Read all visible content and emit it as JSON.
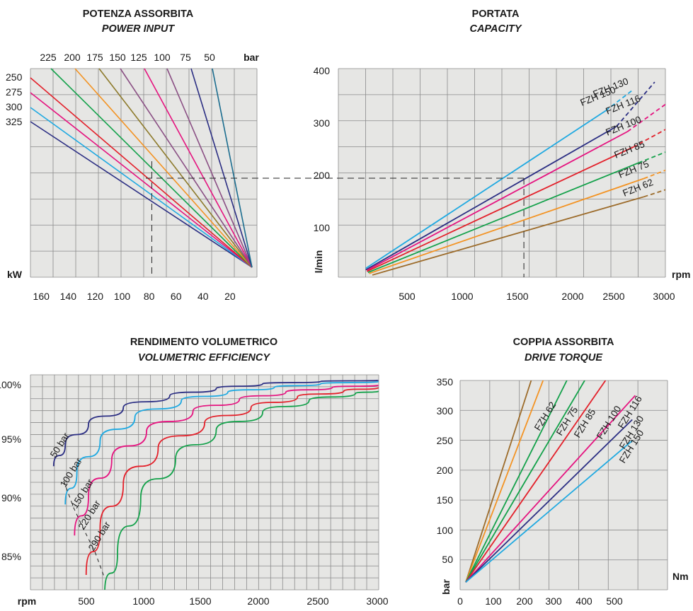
{
  "colors": {
    "panel": "#e6e6e4",
    "grid": "#8a8a8a",
    "navy": "#2b2e83",
    "cyan": "#1fa9e1",
    "magenta": "#e5137f",
    "red": "#e3202a",
    "green": "#13a14a",
    "orange": "#f39323",
    "brown": "#9c6b2a",
    "olive": "#8d7a2b",
    "purple": "#8a4f84",
    "teal": "#1b6d8f"
  },
  "chart_data": [
    {
      "type": "line",
      "title": "POTENZA ASSORBITA",
      "subtitle": "POWER INPUT",
      "xlabel": "kW",
      "x_ticks": [
        "160",
        "140",
        "120",
        "100",
        "80",
        "60",
        "40",
        "20"
      ],
      "top_ticks": [
        "225",
        "200",
        "175",
        "150",
        "125",
        "100",
        "75",
        "50"
      ],
      "top_unit": "bar",
      "left_ticks": [
        "250",
        "275",
        "300",
        "325"
      ],
      "xlim": [
        168,
        0
      ],
      "reference_kw": 78,
      "series_bar": [
        {
          "bar": "325",
          "color": "navy"
        },
        {
          "bar": "300",
          "color": "cyan"
        },
        {
          "bar": "275",
          "color": "magenta"
        },
        {
          "bar": "250",
          "color": "red"
        },
        {
          "bar": "225",
          "color": "green"
        },
        {
          "bar": "200",
          "color": "orange"
        },
        {
          "bar": "175",
          "color": "olive"
        },
        {
          "bar": "150",
          "color": "purple"
        },
        {
          "bar": "125",
          "color": "magenta"
        },
        {
          "bar": "100",
          "color": "purple"
        },
        {
          "bar": "75",
          "color": "navy"
        },
        {
          "bar": "50",
          "color": "teal"
        }
      ]
    },
    {
      "type": "line",
      "title": "PORTATA",
      "subtitle": "CAPACITY",
      "xlabel": "rpm",
      "ylabel": "l/min",
      "x_ticks": [
        "500",
        "1000",
        "1500",
        "2000",
        "2500",
        "3000"
      ],
      "y_ticks": [
        "100",
        "200",
        "300",
        "400"
      ],
      "xlim": [
        0,
        3000
      ],
      "ylim": [
        0,
        400
      ],
      "reference_rpm": 1650,
      "reference_flow": 195,
      "series": [
        {
          "name": "FZH 150",
          "color": "cyan",
          "x": [
            200,
            2400,
            2650
          ],
          "y": [
            28,
            330,
            370
          ]
        },
        {
          "name": "FZH 130",
          "color": "navy",
          "x": [
            200,
            2500,
            2850
          ],
          "y": [
            25,
            300,
            385
          ]
        },
        {
          "name": "FZH 116",
          "color": "magenta",
          "x": [
            210,
            2600,
            3000
          ],
          "y": [
            24,
            290,
            350
          ]
        },
        {
          "name": "FZH 100",
          "color": "red",
          "x": [
            210,
            2650,
            3000
          ],
          "y": [
            22,
            260,
            300
          ]
        },
        {
          "name": "FZH 85",
          "color": "green",
          "x": [
            220,
            2700,
            3000
          ],
          "y": [
            20,
            230,
            255
          ]
        },
        {
          "name": "FZH 75",
          "color": "orange",
          "x": [
            230,
            2750,
            3000
          ],
          "y": [
            18,
            200,
            220
          ]
        },
        {
          "name": "FZH 62",
          "color": "brown",
          "x": [
            260,
            2750,
            3000
          ],
          "y": [
            15,
            165,
            182
          ]
        }
      ]
    },
    {
      "type": "line",
      "title": "RENDIMENTO VOLUMETRICO",
      "subtitle": "VOLUMETRIC EFFICIENCY",
      "xlabel": "rpm",
      "x_ticks": [
        "500",
        "1000",
        "1500",
        "2000",
        "2500",
        "3000"
      ],
      "y_ticks": [
        "85%",
        "90%",
        "95%",
        "100%"
      ],
      "y_tick_values": [
        85,
        90,
        95,
        100
      ],
      "xlim": [
        0,
        3000
      ],
      "ylim": [
        82,
        100
      ],
      "series": [
        {
          "name": "50 bar",
          "color": "navy",
          "x": [
            200,
            300,
            500,
            800,
            1200,
            1600,
            2000,
            2500,
            3000
          ],
          "y": [
            92.7,
            94.5,
            96.2,
            97.6,
            98.6,
            99.2,
            99.6,
            99.8,
            99.9
          ]
        },
        {
          "name": "100 bar",
          "color": "cyan",
          "x": [
            300,
            400,
            600,
            900,
            1300,
            1700,
            2100,
            2500,
            3000
          ],
          "y": [
            89.5,
            92.2,
            94.8,
            96.8,
            98.2,
            98.9,
            99.3,
            99.6,
            99.8
          ]
        },
        {
          "name": "150 bar",
          "color": "magenta",
          "x": [
            380,
            500,
            700,
            1000,
            1400,
            1800,
            2200,
            2600,
            3000
          ],
          "y": [
            86.9,
            90.2,
            93.2,
            95.6,
            97.3,
            98.3,
            98.9,
            99.3,
            99.5
          ]
        },
        {
          "name": "220 bar",
          "color": "red",
          "x": [
            480,
            600,
            800,
            1100,
            1500,
            1900,
            2300,
            2700,
            3000
          ],
          "y": [
            83.6,
            87.5,
            91.2,
            94.2,
            96.3,
            97.6,
            98.5,
            99.0,
            99.3
          ]
        },
        {
          "name": "290 bar",
          "color": "green",
          "x": [
            640,
            750,
            950,
            1250,
            1600,
            2000,
            2400,
            2800,
            3000
          ],
          "y": [
            82.1,
            85.4,
            90.0,
            93.3,
            95.7,
            97.2,
            98.2,
            98.8,
            99.0
          ]
        }
      ]
    },
    {
      "type": "line",
      "title": "COPPIA ASSORBITA",
      "subtitle": "DRIVE TORQUE",
      "xlabel": "Nm",
      "ylabel": "bar",
      "x_ticks": [
        "0",
        "100",
        "200",
        "300",
        "400",
        "500"
      ],
      "y_ticks": [
        "50",
        "100",
        "150",
        "200",
        "250",
        "300",
        "350"
      ],
      "xlim": [
        0,
        600
      ],
      "ylim": [
        0,
        350
      ],
      "series": [
        {
          "name": "FZH 62",
          "color": "brown",
          "x": [
            0,
            220
          ],
          "y": [
            15,
            350
          ]
        },
        {
          "name": "FZH 75",
          "color": "orange",
          "x": [
            0,
            260
          ],
          "y": [
            15,
            350
          ]
        },
        {
          "name": "FZH 85",
          "color": "green",
          "x": [
            0,
            340
          ],
          "y": [
            15,
            350
          ]
        },
        {
          "name": "FZH 100",
          "color": "green",
          "x": [
            0,
            400
          ],
          "y": [
            15,
            350
          ]
        },
        {
          "name": "FZH 116",
          "color": "red",
          "x": [
            0,
            470
          ],
          "y": [
            15,
            350
          ]
        },
        {
          "name": "FZH 130",
          "color": "magenta",
          "x": [
            0,
            570
          ],
          "y": [
            15,
            325
          ]
        },
        {
          "name": "FZH 150",
          "color": "navy",
          "x": [
            0,
            560
          ],
          "y": [
            15,
            285
          ]
        },
        {
          "name": "",
          "color": "cyan",
          "x": [
            0,
            560
          ],
          "y": [
            15,
            250
          ]
        }
      ]
    }
  ]
}
